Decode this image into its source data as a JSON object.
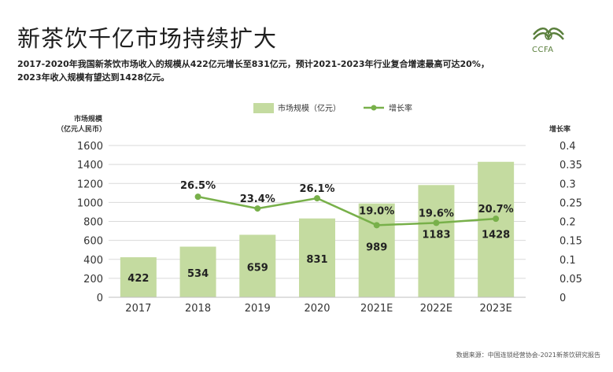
{
  "header": {
    "title": "新茶饮千亿市场持续扩大",
    "subtitle_line1": "2017-2020年我国新茶饮市场收入的规模从422亿元增长至831亿元，预计2021-2023年行业复合增速最高可达20%，",
    "subtitle_line2": "2023年收入规模有望达到1428亿元。"
  },
  "logo": {
    "text": "CCFA",
    "icon": "ccfa-logo-icon",
    "color": "#5a7f3c"
  },
  "source": "数据来源：中国连锁经营协会-2021新茶饮研究报告",
  "colors": {
    "bar": "#c4dba0",
    "line": "#78b04a",
    "grid": "#d9d9d9"
  },
  "chart_data": {
    "type": "bar+line",
    "categories": [
      "2017",
      "2018",
      "2019",
      "2020",
      "2021E",
      "2022E",
      "2023E"
    ],
    "series": [
      {
        "name": "市场规模（亿元）",
        "type": "bar",
        "axis": "left",
        "values": [
          422,
          534,
          659,
          831,
          989,
          1183,
          1428
        ],
        "labels": [
          "422",
          "534",
          "659",
          "831",
          "989",
          "1183",
          "1428"
        ]
      },
      {
        "name": "增长率",
        "type": "line",
        "axis": "right",
        "values": [
          null,
          0.265,
          0.234,
          0.261,
          0.19,
          0.196,
          0.207
        ],
        "labels": [
          "",
          "26.5%",
          "23.4%",
          "26.1%",
          "19.0%",
          "19.6%",
          "20.7%"
        ]
      }
    ],
    "left_axis": {
      "title_line1": "市场规模",
      "title_line2": "（亿元人民币）",
      "ylim": [
        0,
        1600
      ],
      "ticks": [
        "0",
        "200",
        "400",
        "600",
        "800",
        "1000",
        "1200",
        "1400",
        "1600"
      ]
    },
    "right_axis": {
      "title": "增长率",
      "ylim": [
        0,
        0.4
      ],
      "ticks": [
        "0",
        "0.05",
        "0.1",
        "0.15",
        "0.2",
        "0.25",
        "0.3",
        "0.35",
        "0.4"
      ]
    },
    "legend": [
      "市场规模（亿元）",
      "增长率"
    ],
    "legend_position": "top-center",
    "grid": true
  }
}
